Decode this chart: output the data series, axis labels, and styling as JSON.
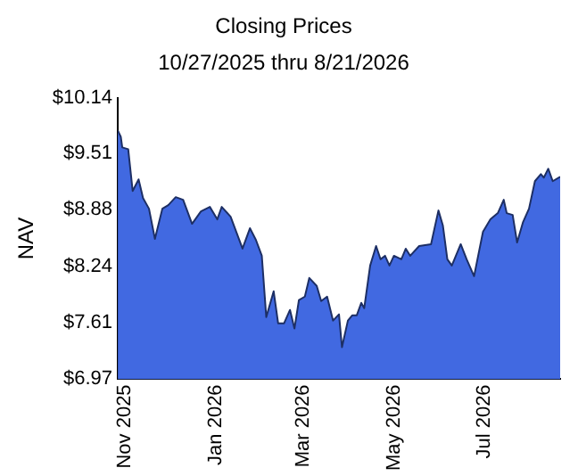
{
  "chart_data": {
    "type": "area",
    "title": "Closing Prices",
    "subtitle": "10/27/2025 thru 8/21/2026",
    "ylabel": "NAV",
    "x": [
      "2025-10-27",
      "2025-10-29",
      "2025-10-30",
      "2025-11-03",
      "2025-11-06",
      "2025-11-10",
      "2025-11-13",
      "2025-11-17",
      "2025-11-21",
      "2025-11-26",
      "2025-11-30",
      "2025-12-05",
      "2025-12-10",
      "2025-12-16",
      "2025-12-22",
      "2025-12-28",
      "2026-01-02",
      "2026-01-05",
      "2026-01-11",
      "2026-01-19",
      "2026-01-24",
      "2026-01-28",
      "2026-02-01",
      "2026-02-04",
      "2026-02-09",
      "2026-02-12",
      "2026-02-16",
      "2026-02-20",
      "2026-02-23",
      "2026-02-26",
      "2026-03-02",
      "2026-03-05",
      "2026-03-10",
      "2026-03-13",
      "2026-03-17",
      "2026-03-21",
      "2026-03-25",
      "2026-03-27",
      "2026-03-31",
      "2026-04-03",
      "2026-04-06",
      "2026-04-09",
      "2026-04-11",
      "2026-04-15",
      "2026-04-19",
      "2026-04-22",
      "2026-04-25",
      "2026-04-28",
      "2026-05-01",
      "2026-05-06",
      "2026-05-09",
      "2026-05-12",
      "2026-05-18",
      "2026-05-26",
      "2026-05-31",
      "2026-06-03",
      "2026-06-06",
      "2026-06-09",
      "2026-06-15",
      "2026-06-19",
      "2026-06-24",
      "2026-06-30",
      "2026-07-05",
      "2026-07-10",
      "2026-07-14",
      "2026-07-16",
      "2026-07-20",
      "2026-07-23",
      "2026-07-27",
      "2026-07-31",
      "2026-08-04",
      "2026-08-08",
      "2026-08-10",
      "2026-08-13",
      "2026-08-16",
      "2026-08-21"
    ],
    "series": [
      {
        "color": "#4169e1",
        "values": [
          9.77,
          9.7,
          9.58,
          9.56,
          9.09,
          9.22,
          9.01,
          8.89,
          8.55,
          8.89,
          8.93,
          9.02,
          8.99,
          8.72,
          8.86,
          8.91,
          8.77,
          8.91,
          8.8,
          8.44,
          8.67,
          8.54,
          8.36,
          7.67,
          7.96,
          7.6,
          7.6,
          7.75,
          7.54,
          7.86,
          7.9,
          8.11,
          8.02,
          7.85,
          7.9,
          7.63,
          7.7,
          7.33,
          7.63,
          7.69,
          7.69,
          7.83,
          7.77,
          8.25,
          8.47,
          8.32,
          8.36,
          8.25,
          8.36,
          8.32,
          8.44,
          8.36,
          8.47,
          8.49,
          8.87,
          8.7,
          8.32,
          8.25,
          8.49,
          8.32,
          8.13,
          8.63,
          8.77,
          8.84,
          8.99,
          8.84,
          8.82,
          8.51,
          8.74,
          8.89,
          9.2,
          9.28,
          9.24,
          9.34,
          9.2,
          9.25
        ]
      }
    ],
    "xlim": [
      "2025-10-27",
      "2026-08-21"
    ],
    "xticks": [
      {
        "value": "2025-11-01",
        "label": "Nov 2025"
      },
      {
        "value": "2026-01-01",
        "label": "Jan 2026"
      },
      {
        "value": "2026-03-01",
        "label": "Mar 2026"
      },
      {
        "value": "2026-05-01",
        "label": "May 2026"
      },
      {
        "value": "2026-07-01",
        "label": "Jul 2026"
      }
    ],
    "ylim": [
      6.97,
      10.14
    ],
    "yticks": [
      {
        "value": 6.97,
        "label": "$6.97"
      },
      {
        "value": 7.61,
        "label": "$7.61"
      },
      {
        "value": 8.24,
        "label": "$8.24"
      },
      {
        "value": 8.88,
        "label": "$8.88"
      },
      {
        "value": 9.51,
        "label": "$9.51"
      },
      {
        "value": 10.14,
        "label": "$10.14"
      }
    ],
    "grid": false,
    "legend": false
  }
}
